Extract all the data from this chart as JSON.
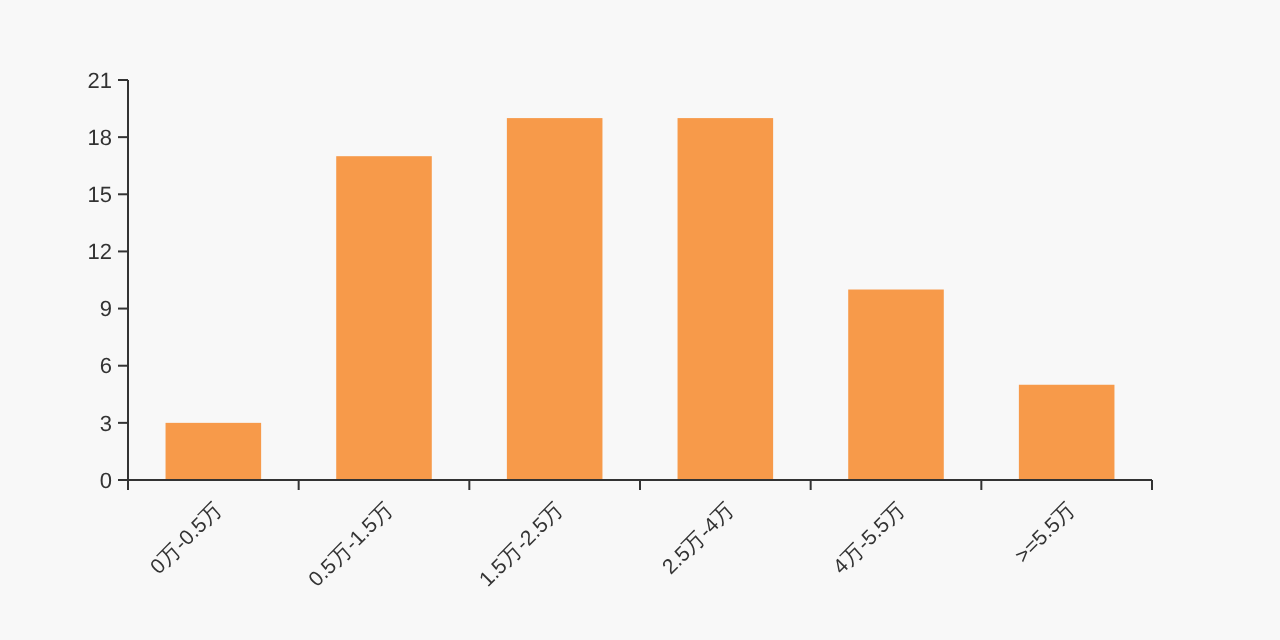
{
  "chart_data": {
    "type": "bar",
    "categories": [
      "0万-0.5万",
      "0.5万-1.5万",
      "1.5万-2.5万",
      "2.5万-4万",
      "4万-5.5万",
      ">=5.5万"
    ],
    "values": [
      3,
      17,
      19,
      19,
      10,
      5
    ],
    "color": "#f79a4a",
    "ylim": [
      0,
      21
    ],
    "yticks": [
      0,
      3,
      6,
      9,
      12,
      15,
      18,
      21
    ],
    "grid": false
  }
}
